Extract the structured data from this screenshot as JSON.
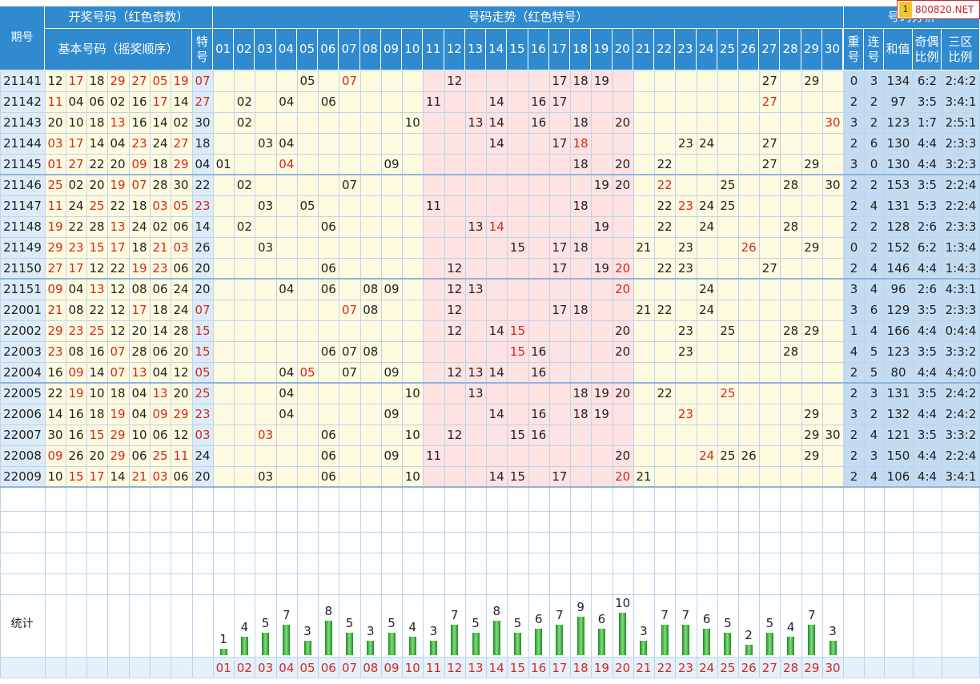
{
  "header": {
    "qihao": "期号",
    "kaijiang": "开奖号码（红色奇数）",
    "jiben": "基本号码（摇奖顺序）",
    "te": "特号",
    "zoushi": "号码走势（红色特号）",
    "fenxi": "号码分析",
    "chong": "重号",
    "lian": "连号",
    "hezhi": "和值",
    "jiou": "奇偶比例",
    "sanqu": "三区比例",
    "numbers": [
      "01",
      "02",
      "03",
      "04",
      "05",
      "06",
      "07",
      "08",
      "09",
      "10",
      "11",
      "12",
      "13",
      "14",
      "15",
      "16",
      "17",
      "18",
      "19",
      "20",
      "21",
      "22",
      "23",
      "24",
      "25",
      "26",
      "27",
      "28",
      "29",
      "30"
    ]
  },
  "badge": {
    "icon": "1",
    "text": "800820.NET"
  },
  "rows": [
    {
      "id": "21141",
      "nums": [
        "12",
        "17",
        "18",
        "29",
        "27",
        "05",
        "19"
      ],
      "te": "07",
      "zs": [
        "05",
        "07",
        "12",
        "17",
        "18",
        "19",
        "27",
        "29"
      ],
      "chong": "0",
      "lian": "3",
      "he": "134",
      "jo": "6:2",
      "sq": "2:4:2"
    },
    {
      "id": "21142",
      "nums": [
        "11",
        "04",
        "06",
        "02",
        "16",
        "17",
        "14"
      ],
      "te": "27",
      "zs": [
        "02",
        "04",
        "06",
        "11",
        "14",
        "16",
        "17",
        "27"
      ],
      "chong": "2",
      "lian": "2",
      "he": "97",
      "jo": "3:5",
      "sq": "3:4:1"
    },
    {
      "id": "21143",
      "nums": [
        "20",
        "10",
        "18",
        "13",
        "16",
        "14",
        "02"
      ],
      "te": "30",
      "zs": [
        "02",
        "10",
        "13",
        "14",
        "16",
        "18",
        "20",
        "30"
      ],
      "chong": "3",
      "lian": "2",
      "he": "123",
      "jo": "1:7",
      "sq": "2:5:1"
    },
    {
      "id": "21144",
      "nums": [
        "03",
        "17",
        "14",
        "04",
        "23",
        "24",
        "27"
      ],
      "te": "18",
      "zs": [
        "03",
        "04",
        "14",
        "17",
        "18",
        "23",
        "24",
        "27"
      ],
      "chong": "2",
      "lian": "6",
      "he": "130",
      "jo": "4:4",
      "sq": "2:3:3"
    },
    {
      "id": "21145",
      "nums": [
        "01",
        "27",
        "22",
        "20",
        "09",
        "18",
        "29"
      ],
      "te": "04",
      "zs": [
        "01",
        "04",
        "09",
        "18",
        "20",
        "22",
        "27",
        "29"
      ],
      "chong": "3",
      "lian": "0",
      "he": "130",
      "jo": "4:4",
      "sq": "3:2:3"
    },
    {
      "id": "21146",
      "nums": [
        "25",
        "02",
        "20",
        "19",
        "07",
        "28",
        "30"
      ],
      "te": "22",
      "zs": [
        "02",
        "07",
        "19",
        "20",
        "22",
        "25",
        "28",
        "30"
      ],
      "chong": "2",
      "lian": "2",
      "he": "153",
      "jo": "3:5",
      "sq": "2:2:4"
    },
    {
      "id": "21147",
      "nums": [
        "11",
        "24",
        "25",
        "22",
        "18",
        "03",
        "05"
      ],
      "te": "23",
      "zs": [
        "03",
        "05",
        "11",
        "18",
        "22",
        "23",
        "24",
        "25"
      ],
      "chong": "2",
      "lian": "4",
      "he": "131",
      "jo": "5:3",
      "sq": "2:2:4"
    },
    {
      "id": "21148",
      "nums": [
        "19",
        "22",
        "28",
        "13",
        "24",
        "02",
        "06"
      ],
      "te": "14",
      "zs": [
        "02",
        "06",
        "13",
        "14",
        "19",
        "22",
        "24",
        "28"
      ],
      "chong": "2",
      "lian": "2",
      "he": "128",
      "jo": "2:6",
      "sq": "2:3:3"
    },
    {
      "id": "21149",
      "nums": [
        "29",
        "23",
        "15",
        "17",
        "18",
        "21",
        "03"
      ],
      "te": "26",
      "zs": [
        "03",
        "15",
        "17",
        "18",
        "21",
        "23",
        "26",
        "29"
      ],
      "chong": "0",
      "lian": "2",
      "he": "152",
      "jo": "6:2",
      "sq": "1:3:4"
    },
    {
      "id": "21150",
      "nums": [
        "27",
        "17",
        "12",
        "22",
        "19",
        "23",
        "06"
      ],
      "te": "20",
      "zs": [
        "06",
        "12",
        "17",
        "19",
        "20",
        "22",
        "23",
        "27"
      ],
      "chong": "2",
      "lian": "4",
      "he": "146",
      "jo": "4:4",
      "sq": "1:4:3"
    },
    {
      "id": "21151",
      "nums": [
        "09",
        "04",
        "13",
        "12",
        "08",
        "06",
        "24"
      ],
      "te": "20",
      "zs": [
        "04",
        "06",
        "08",
        "09",
        "12",
        "13",
        "20",
        "24"
      ],
      "chong": "3",
      "lian": "4",
      "he": "96",
      "jo": "2:6",
      "sq": "4:3:1"
    },
    {
      "id": "22001",
      "nums": [
        "21",
        "08",
        "22",
        "12",
        "17",
        "18",
        "24"
      ],
      "te": "07",
      "zs": [
        "07",
        "08",
        "12",
        "17",
        "18",
        "21",
        "22",
        "24"
      ],
      "chong": "3",
      "lian": "6",
      "he": "129",
      "jo": "3:5",
      "sq": "2:3:3"
    },
    {
      "id": "22002",
      "nums": [
        "29",
        "23",
        "25",
        "12",
        "20",
        "14",
        "28"
      ],
      "te": "15",
      "zs": [
        "12",
        "14",
        "15",
        "20",
        "23",
        "25",
        "28",
        "29"
      ],
      "chong": "1",
      "lian": "4",
      "he": "166",
      "jo": "4:4",
      "sq": "0:4:4"
    },
    {
      "id": "22003",
      "nums": [
        "23",
        "08",
        "16",
        "07",
        "28",
        "06",
        "20"
      ],
      "te": "15",
      "zs": [
        "06",
        "07",
        "08",
        "15",
        "16",
        "20",
        "23",
        "28"
      ],
      "chong": "4",
      "lian": "5",
      "he": "123",
      "jo": "3:5",
      "sq": "3:3:2"
    },
    {
      "id": "22004",
      "nums": [
        "16",
        "09",
        "14",
        "07",
        "13",
        "04",
        "12"
      ],
      "te": "05",
      "zs": [
        "04",
        "05",
        "07",
        "09",
        "12",
        "13",
        "14",
        "16"
      ],
      "chong": "2",
      "lian": "5",
      "he": "80",
      "jo": "4:4",
      "sq": "4:4:0"
    },
    {
      "id": "22005",
      "nums": [
        "22",
        "19",
        "10",
        "18",
        "04",
        "13",
        "20"
      ],
      "te": "25",
      "zs": [
        "04",
        "10",
        "13",
        "18",
        "19",
        "20",
        "22",
        "25"
      ],
      "chong": "2",
      "lian": "3",
      "he": "131",
      "jo": "3:5",
      "sq": "2:4:2"
    },
    {
      "id": "22006",
      "nums": [
        "14",
        "16",
        "18",
        "19",
        "04",
        "09",
        "29"
      ],
      "te": "23",
      "zs": [
        "04",
        "09",
        "14",
        "16",
        "18",
        "19",
        "23",
        "29"
      ],
      "chong": "3",
      "lian": "2",
      "he": "132",
      "jo": "4:4",
      "sq": "2:4:2"
    },
    {
      "id": "22007",
      "nums": [
        "30",
        "16",
        "15",
        "29",
        "10",
        "06",
        "12"
      ],
      "te": "03",
      "zs": [
        "03",
        "06",
        "10",
        "12",
        "15",
        "16",
        "29",
        "30"
      ],
      "chong": "2",
      "lian": "4",
      "he": "121",
      "jo": "3:5",
      "sq": "3:3:2"
    },
    {
      "id": "22008",
      "nums": [
        "09",
        "26",
        "20",
        "29",
        "06",
        "25",
        "11"
      ],
      "te": "24",
      "zs": [
        "06",
        "09",
        "11",
        "20",
        "24",
        "25",
        "26",
        "29"
      ],
      "chong": "2",
      "lian": "3",
      "he": "150",
      "jo": "4:4",
      "sq": "2:2:4"
    },
    {
      "id": "22009",
      "nums": [
        "10",
        "15",
        "17",
        "14",
        "21",
        "03",
        "06"
      ],
      "te": "20",
      "zs": [
        "03",
        "06",
        "10",
        "14",
        "15",
        "17",
        "20",
        "21"
      ],
      "chong": "2",
      "lian": "4",
      "he": "106",
      "jo": "4:4",
      "sq": "3:4:1"
    }
  ],
  "stats": {
    "label": "统计"
  },
  "chart_data": {
    "type": "bar",
    "title": "",
    "xlabel": "",
    "ylabel": "",
    "categories": [
      "01",
      "02",
      "03",
      "04",
      "05",
      "06",
      "07",
      "08",
      "09",
      "10",
      "11",
      "12",
      "13",
      "14",
      "15",
      "16",
      "17",
      "18",
      "19",
      "20",
      "21",
      "22",
      "23",
      "24",
      "25",
      "26",
      "27",
      "28",
      "29",
      "30"
    ],
    "values": [
      1,
      4,
      5,
      7,
      3,
      8,
      5,
      3,
      5,
      4,
      3,
      7,
      5,
      8,
      5,
      6,
      7,
      9,
      6,
      10,
      3,
      7,
      7,
      6,
      5,
      2,
      5,
      4,
      7,
      3
    ],
    "ylim": [
      0,
      10
    ]
  },
  "colors": {
    "header": "#2f8ad0",
    "zone_yellow": "#fffbe0",
    "zone_pink": "#ffe2e2",
    "num_blue": "#dcebf8",
    "side_blue": "#c4dcf2",
    "odd_red": "#d4281c",
    "bar_green": "#2c9a2c"
  }
}
